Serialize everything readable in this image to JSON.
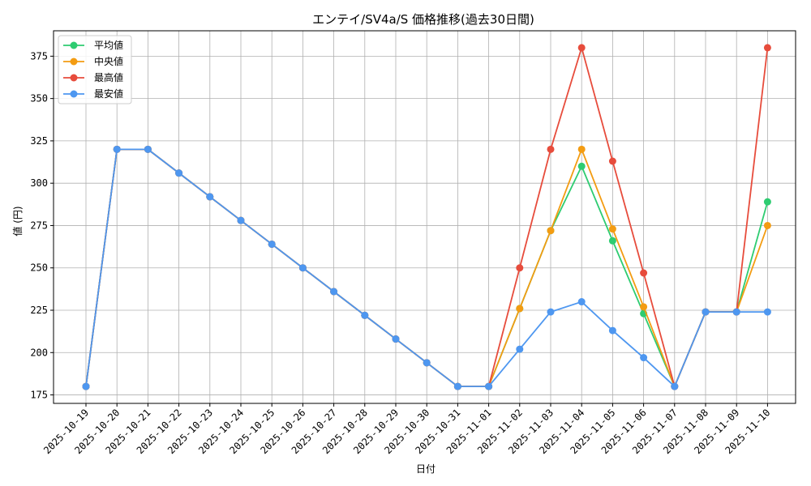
{
  "chart_data": {
    "type": "line",
    "title": "エンテイ/SV4a/S 価格推移(過去30日間)",
    "xlabel": "日付",
    "ylabel": "値 (円)",
    "categories": [
      "2025-10-19",
      "2025-10-20",
      "2025-10-21",
      "2025-10-22",
      "2025-10-23",
      "2025-10-24",
      "2025-10-25",
      "2025-10-26",
      "2025-10-27",
      "2025-10-28",
      "2025-10-29",
      "2025-10-30",
      "2025-10-31",
      "2025-11-01",
      "2025-11-02",
      "2025-11-03",
      "2025-11-04",
      "2025-11-05",
      "2025-11-06",
      "2025-11-07",
      "2025-11-08",
      "2025-11-09",
      "2025-11-10"
    ],
    "ylim": [
      170,
      390
    ],
    "yticks": [
      175,
      200,
      225,
      250,
      275,
      300,
      325,
      350,
      375
    ],
    "grid": true,
    "legend_position": "top-left",
    "series": [
      {
        "name": "平均値",
        "color": "#2ecc71",
        "values": [
          180,
          320,
          320,
          306,
          292,
          278,
          264,
          250,
          236,
          222,
          208,
          194,
          180,
          180,
          226,
          272,
          310,
          266,
          223,
          180,
          224,
          224,
          289
        ]
      },
      {
        "name": "中央値",
        "color": "#f39c12",
        "values": [
          180,
          320,
          320,
          306,
          292,
          278,
          264,
          250,
          236,
          222,
          208,
          194,
          180,
          180,
          226,
          272,
          320,
          273,
          227,
          180,
          224,
          224,
          275
        ]
      },
      {
        "name": "最高値",
        "color": "#e74c3c",
        "values": [
          180,
          320,
          320,
          306,
          292,
          278,
          264,
          250,
          236,
          222,
          208,
          194,
          180,
          180,
          250,
          320,
          380,
          313,
          247,
          180,
          224,
          224,
          380
        ]
      },
      {
        "name": "最安値",
        "color": "#4e97f0",
        "values": [
          180,
          320,
          320,
          306,
          292,
          278,
          264,
          250,
          236,
          222,
          208,
          194,
          180,
          180,
          202,
          224,
          230,
          213,
          197,
          180,
          224,
          224,
          224
        ]
      }
    ]
  }
}
